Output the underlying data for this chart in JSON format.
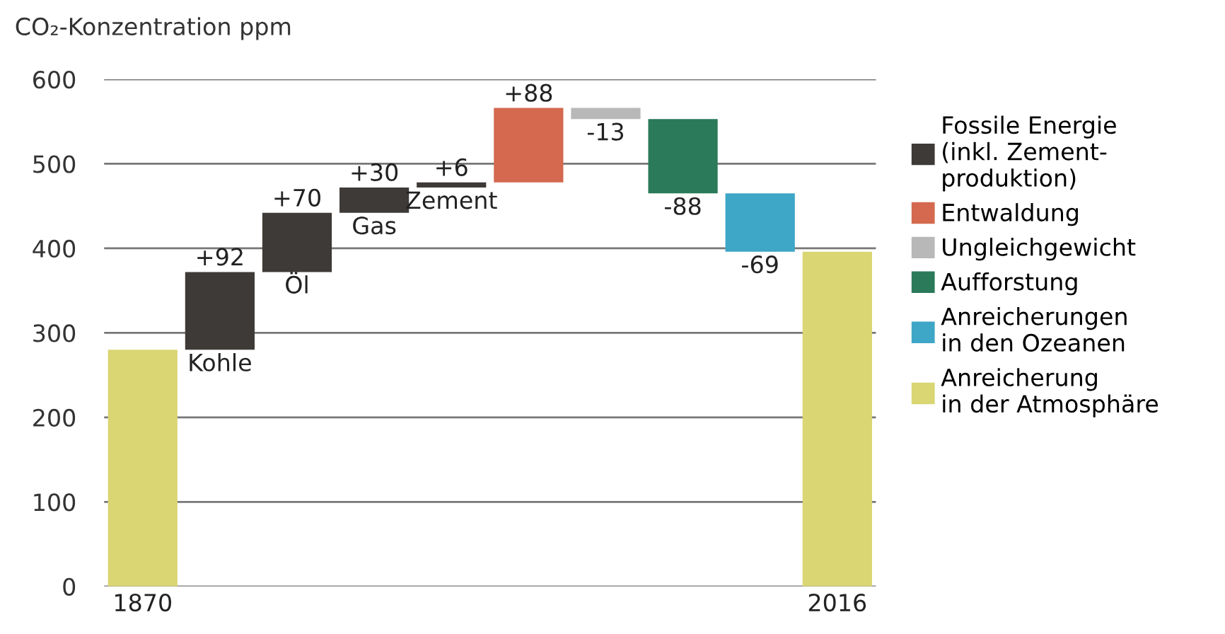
{
  "chart_data": {
    "type": "bar",
    "ylabel": "CO₂-Konzentration ppm",
    "categories": [
      "1870",
      "Kohle",
      "Öl",
      "Gas",
      "Zement",
      null,
      null,
      null,
      null,
      "2016"
    ],
    "series": [
      {
        "name": "Fossile Energie\n(inkl. Zement-\nproduktion)",
        "color": "#3e3a37",
        "values": [
          null,
          92,
          70,
          30,
          6,
          null,
          null,
          null,
          null,
          null
        ],
        "base": [
          null,
          280,
          372,
          442,
          472,
          null,
          null,
          null,
          null,
          null
        ],
        "value_labels": [
          null,
          "+92",
          "+70",
          "+30",
          "+6",
          null,
          null,
          null,
          null,
          null
        ]
      },
      {
        "name": "Entwaldung",
        "color": "#d4694f",
        "values": [
          null,
          null,
          null,
          null,
          null,
          88,
          null,
          null,
          null,
          null
        ],
        "base": [
          null,
          null,
          null,
          null,
          null,
          478,
          null,
          null,
          null,
          null
        ],
        "value_labels": [
          null,
          null,
          null,
          null,
          null,
          "+88",
          null,
          null,
          null,
          null
        ]
      },
      {
        "name": "Ungleichgewicht",
        "color": "#b8b8b8",
        "values": [
          null,
          null,
          null,
          null,
          null,
          null,
          -13,
          null,
          null,
          null
        ],
        "base": [
          null,
          null,
          null,
          null,
          null,
          null,
          566,
          null,
          null,
          null
        ],
        "value_labels": [
          null,
          null,
          null,
          null,
          null,
          null,
          "-13",
          null,
          null,
          null
        ]
      },
      {
        "name": "Aufforstung",
        "color": "#2b7a5a",
        "values": [
          null,
          null,
          null,
          null,
          null,
          null,
          null,
          -88,
          null,
          null
        ],
        "base": [
          null,
          null,
          null,
          null,
          null,
          null,
          null,
          553,
          null,
          null
        ],
        "value_labels": [
          null,
          null,
          null,
          null,
          null,
          null,
          null,
          "-88",
          null,
          null
        ]
      },
      {
        "name": "Anreicherungen\nin den Ozeanen",
        "color": "#3ea6c6",
        "values": [
          null,
          null,
          null,
          null,
          null,
          null,
          null,
          null,
          -69,
          null
        ],
        "base": [
          null,
          null,
          null,
          null,
          null,
          null,
          null,
          null,
          465,
          null
        ],
        "value_labels": [
          null,
          null,
          null,
          null,
          null,
          null,
          null,
          null,
          "-69",
          null
        ]
      },
      {
        "name": "Anreicherung\nin der Atmosphäre",
        "color": "#d9d673",
        "values": [
          280,
          null,
          null,
          null,
          null,
          null,
          null,
          null,
          null,
          396
        ],
        "base": [
          0,
          null,
          null,
          null,
          null,
          null,
          null,
          null,
          null,
          0
        ],
        "value_labels": [
          null,
          null,
          null,
          null,
          null,
          null,
          null,
          null,
          null,
          null
        ]
      }
    ],
    "ylim": [
      0,
      600
    ],
    "yticks": [
      0,
      100,
      200,
      300,
      400,
      500,
      600
    ],
    "grid": "y",
    "legend": "right"
  }
}
